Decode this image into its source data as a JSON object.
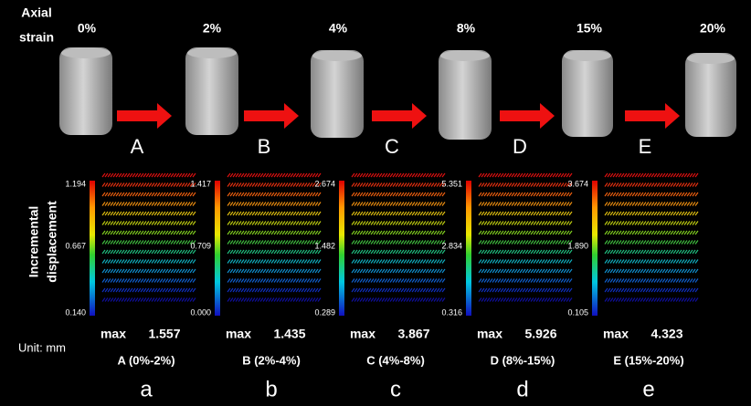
{
  "header": {
    "label_lines": [
      "Axial",
      "strain"
    ],
    "strains": [
      "0%",
      "2%",
      "4%",
      "8%",
      "15%",
      "20%"
    ],
    "steps": [
      "A",
      "B",
      "C",
      "D",
      "E"
    ]
  },
  "side_label_lines": [
    "Incremental",
    "displacement"
  ],
  "unit": "Unit: mm",
  "panels": [
    {
      "ticks": [
        "1.194",
        "0.667",
        "0.140"
      ],
      "max_label": "max",
      "max": "1.557",
      "range": "A (0%-2%)",
      "letter": "a"
    },
    {
      "ticks": [
        "1.417",
        "0.709",
        "0.000"
      ],
      "max_label": "max",
      "max": "1.435",
      "range": "B (2%-4%)",
      "letter": "b"
    },
    {
      "ticks": [
        "2.674",
        "1.482",
        "0.289"
      ],
      "max_label": "max",
      "max": "3.867",
      "range": "C (4%-8%)",
      "letter": "c"
    },
    {
      "ticks": [
        "5.351",
        "2.834",
        "0.316"
      ],
      "max_label": "max",
      "max": "5.926",
      "range": "D (8%-15%)",
      "letter": "d"
    },
    {
      "ticks": [
        "3.674",
        "1.890",
        "0.105"
      ],
      "max_label": "max",
      "max": "4.323",
      "range": "E (15%-20%)",
      "letter": "e"
    }
  ]
}
